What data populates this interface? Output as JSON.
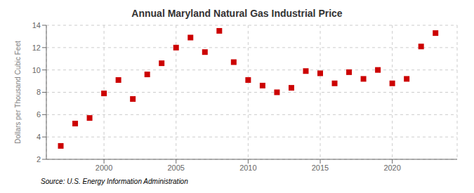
{
  "chart_data": {
    "type": "scatter",
    "title": "Annual Maryland Natural Gas Industrial Price",
    "ylabel": "Dollars per Thousand Cubic Feet",
    "source": "Source: U.S. Energy Information Administration",
    "x": [
      1997,
      1998,
      1999,
      2000,
      2001,
      2002,
      2003,
      2004,
      2005,
      2006,
      2007,
      2008,
      2009,
      2010,
      2011,
      2012,
      2013,
      2014,
      2015,
      2016,
      2017,
      2018,
      2019,
      2020,
      2021,
      2022,
      2023
    ],
    "values": [
      3.2,
      5.2,
      5.7,
      7.9,
      9.1,
      7.4,
      9.6,
      10.6,
      12.0,
      12.9,
      11.6,
      13.5,
      10.7,
      9.1,
      8.6,
      8.0,
      8.4,
      9.9,
      9.7,
      8.8,
      9.8,
      9.2,
      10.0,
      8.8,
      9.2,
      12.1,
      13.3
    ],
    "color": "#cc0000",
    "marker": "square",
    "xlim": [
      1996.0,
      2024.5
    ],
    "xticks": [
      2000,
      2005,
      2010,
      2015,
      2020
    ],
    "ylim": [
      2,
      14
    ],
    "yticks": [
      2,
      4,
      6,
      8,
      10,
      12,
      14
    ],
    "grid": true
  }
}
